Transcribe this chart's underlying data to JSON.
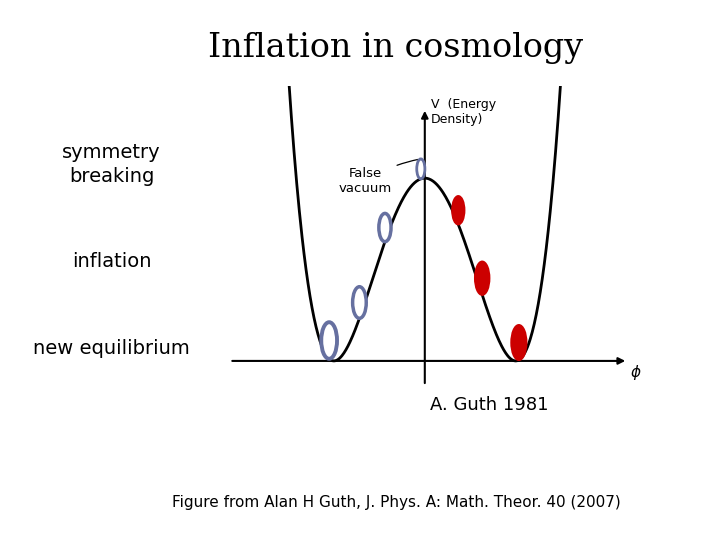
{
  "title": "Inflation in cosmology",
  "title_fontsize": 24,
  "background_color": "#ffffff",
  "label_symmetry_breaking": "symmetry\nbreaking",
  "label_inflation": "inflation",
  "label_new_equilibrium": "new equilibrium",
  "label_false_vacuum": "False\nvacuum",
  "label_V": "V  (Energy\nDensity)",
  "label_phi": "ϕ",
  "label_guth": "A. Guth 1981",
  "label_figure": "Figure from Alan H Guth, J. Phys. A: Math. Theor. 40 (2007)",
  "curve_color": "#000000",
  "open_circle_color": "#6670a0",
  "filled_circle_color": "#cc0000",
  "label_fontsize": 14,
  "small_label_fontsize": 10,
  "guth_fontsize": 13,
  "figure_fontsize": 11
}
